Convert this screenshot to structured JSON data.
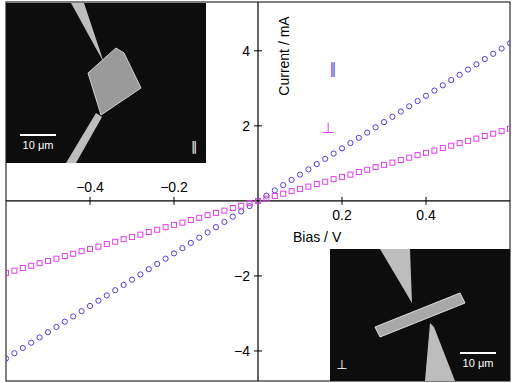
{
  "chart_data": {
    "type": "scatter",
    "x_label": "Bias / V",
    "y_label": "Current / mA",
    "xlim": [
      -0.6,
      0.6
    ],
    "ylim": [
      -4.8,
      5.3
    ],
    "xticks": [
      {
        "value": -0.4,
        "label": "−0.4"
      },
      {
        "value": -0.2,
        "label": "−0.2"
      },
      0.2,
      0.4
    ],
    "yticks": [
      {
        "value": -4,
        "label": "−4"
      },
      {
        "value": -2,
        "label": "−2"
      },
      2,
      4
    ],
    "grid": false,
    "x": [
      -0.6,
      -0.58,
      -0.56,
      -0.54,
      -0.52,
      -0.5,
      -0.48,
      -0.46,
      -0.44,
      -0.42,
      -0.4,
      -0.38,
      -0.36,
      -0.34,
      -0.32,
      -0.3,
      -0.28,
      -0.26,
      -0.24,
      -0.22,
      -0.2,
      -0.18,
      -0.16,
      -0.14,
      -0.12,
      -0.1,
      -0.08,
      -0.06,
      -0.04,
      -0.02,
      0,
      0.02,
      0.04,
      0.06,
      0.08,
      0.1,
      0.12,
      0.14,
      0.16,
      0.18,
      0.2,
      0.22,
      0.24,
      0.26,
      0.28,
      0.3,
      0.32,
      0.34,
      0.36,
      0.38,
      0.4,
      0.42,
      0.44,
      0.46,
      0.48,
      0.5,
      0.52,
      0.54,
      0.56,
      0.58,
      0.6
    ],
    "series": [
      {
        "name": "∥",
        "color": "#5a3bd8",
        "marker": "circle",
        "values": [
          -4.2,
          -4.06,
          -3.92,
          -3.78,
          -3.64,
          -3.5,
          -3.36,
          -3.22,
          -3.08,
          -2.94,
          -2.8,
          -2.66,
          -2.52,
          -2.38,
          -2.24,
          -2.1,
          -1.96,
          -1.82,
          -1.68,
          -1.54,
          -1.4,
          -1.26,
          -1.12,
          -0.98,
          -0.84,
          -0.7,
          -0.56,
          -0.42,
          -0.28,
          -0.14,
          0,
          0.14,
          0.28,
          0.42,
          0.56,
          0.7,
          0.84,
          0.98,
          1.12,
          1.26,
          1.4,
          1.54,
          1.68,
          1.82,
          1.96,
          2.1,
          2.24,
          2.38,
          2.52,
          2.66,
          2.8,
          2.94,
          3.08,
          3.22,
          3.36,
          3.5,
          3.64,
          3.78,
          3.92,
          4.06,
          4.2
        ]
      },
      {
        "name": "⊥",
        "color": "#e040e8",
        "marker": "square",
        "values": [
          -1.92,
          -1.86,
          -1.79,
          -1.73,
          -1.66,
          -1.6,
          -1.54,
          -1.47,
          -1.41,
          -1.34,
          -1.28,
          -1.22,
          -1.15,
          -1.09,
          -1.02,
          -0.96,
          -0.9,
          -0.83,
          -0.77,
          -0.7,
          -0.64,
          -0.58,
          -0.51,
          -0.45,
          -0.38,
          -0.32,
          -0.26,
          -0.19,
          -0.13,
          -0.06,
          0,
          0.06,
          0.13,
          0.19,
          0.26,
          0.32,
          0.38,
          0.45,
          0.51,
          0.58,
          0.64,
          0.7,
          0.77,
          0.83,
          0.9,
          0.96,
          1.02,
          1.09,
          1.15,
          1.22,
          1.28,
          1.34,
          1.41,
          1.47,
          1.54,
          1.6,
          1.66,
          1.73,
          1.79,
          1.86,
          1.92
        ]
      }
    ],
    "annotations": [
      {
        "label": "∥",
        "scale_bar": "10 μm"
      },
      {
        "label": "⊥",
        "scale_bar": "10 μm"
      }
    ]
  }
}
